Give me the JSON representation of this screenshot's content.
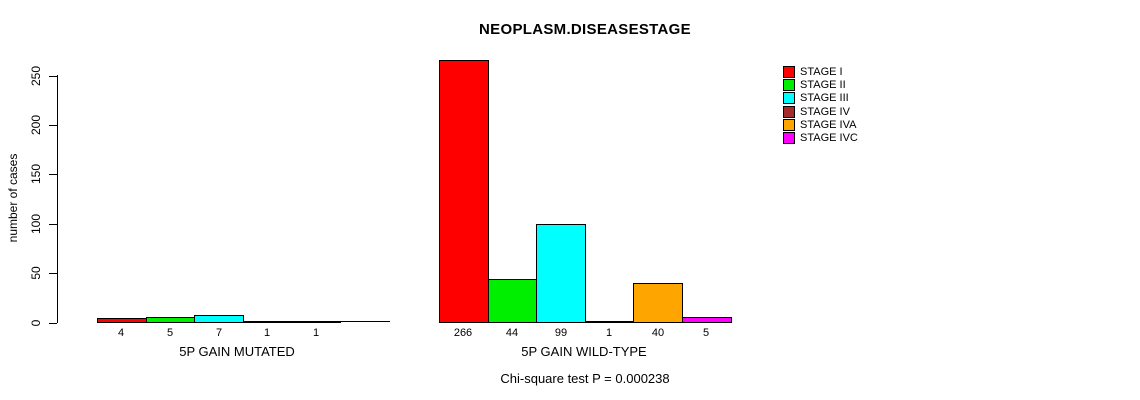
{
  "chart_data": {
    "type": "bar",
    "title": "NEOPLASM.DISEASESTAGE",
    "ylabel": "number of cases",
    "xlabel": "",
    "yticks": [
      0,
      50,
      100,
      150,
      200,
      250
    ],
    "ylim": [
      0,
      270
    ],
    "grid": false,
    "legend_position": "top-right",
    "legend": [
      {
        "label": "STAGE I",
        "color": "#FF0000"
      },
      {
        "label": "STAGE II",
        "color": "#00EE00"
      },
      {
        "label": "STAGE III",
        "color": "#00FFFF"
      },
      {
        "label": "STAGE IV",
        "color": "#A52A2A"
      },
      {
        "label": "STAGE IVA",
        "color": "#FFA500"
      },
      {
        "label": "STAGE IVC",
        "color": "#FF00FF"
      }
    ],
    "groups": [
      {
        "label": "5P GAIN MUTATED",
        "bars": [
          {
            "stage": "STAGE I",
            "value": 4,
            "color": "#FF0000"
          },
          {
            "stage": "STAGE II",
            "value": 5,
            "color": "#00EE00"
          },
          {
            "stage": "STAGE III",
            "value": 7,
            "color": "#00FFFF"
          },
          {
            "stage": "STAGE IV",
            "value": 1,
            "color": "#A52A2A"
          },
          {
            "stage": "STAGE IVA",
            "value": 1,
            "color": "#FFA500"
          }
        ]
      },
      {
        "label": "5P GAIN WILD-TYPE",
        "bars": [
          {
            "stage": "STAGE I",
            "value": 266,
            "color": "#FF0000"
          },
          {
            "stage": "STAGE II",
            "value": 44,
            "color": "#00EE00"
          },
          {
            "stage": "STAGE III",
            "value": 99,
            "color": "#00FFFF"
          },
          {
            "stage": "STAGE IV",
            "value": 1,
            "color": "#A52A2A"
          },
          {
            "stage": "STAGE IVA",
            "value": 40,
            "color": "#FFA500"
          },
          {
            "stage": "STAGE IVC",
            "value": 5,
            "color": "#FF00FF"
          }
        ]
      }
    ],
    "footer": "Chi-square test P = 0.000238"
  }
}
